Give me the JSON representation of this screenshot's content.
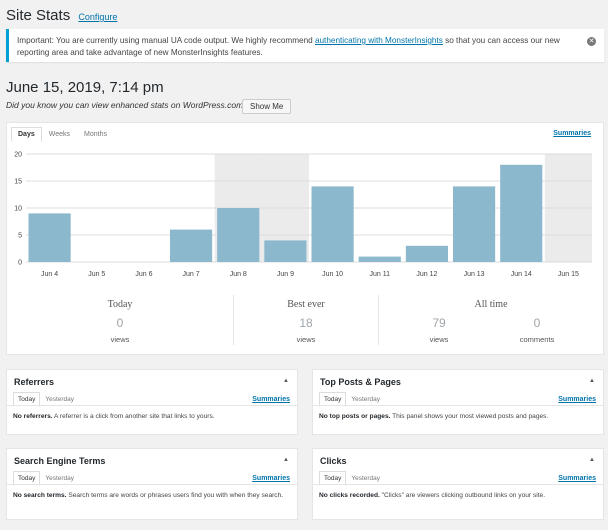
{
  "header": {
    "title": "Site Stats",
    "configure_label": "Configure"
  },
  "notice": {
    "text_before": "Important: You are currently using manual UA code output. We highly recommend ",
    "link_text": "authenticating with MonsterInsights",
    "text_after": " so that you can access our new reporting area and take advantage of new MonsterInsights features.",
    "dismiss_icon": "close-icon"
  },
  "date_heading": "June 15, 2019, 7:14 pm",
  "promo": {
    "text": "Did you know you can view enhanced stats on WordPress.com?",
    "button": "Show Me"
  },
  "stats": {
    "tabs": [
      "Days",
      "Weeks",
      "Months"
    ],
    "active_tab": "Days",
    "summaries_label": "Summaries",
    "totals": {
      "today": {
        "label": "Today",
        "value": "0",
        "unit": "views"
      },
      "best": {
        "label": "Best ever",
        "value": "18",
        "unit": "views"
      },
      "all_time": {
        "label": "All time",
        "views_value": "79",
        "views_unit": "views",
        "comments_value": "0",
        "comments_unit": "comments"
      }
    }
  },
  "chart_data": {
    "type": "bar",
    "categories": [
      "Jun 4",
      "Jun 5",
      "Jun 6",
      "Jun 7",
      "Jun 8",
      "Jun 9",
      "Jun 10",
      "Jun 11",
      "Jun 12",
      "Jun 13",
      "Jun 14",
      "Jun 15"
    ],
    "values": [
      9,
      0,
      0,
      6,
      10,
      4,
      14,
      1,
      3,
      14,
      18,
      0
    ],
    "weekend_highlight": [
      "Jun 8",
      "Jun 9",
      "Jun 15"
    ],
    "ylim": [
      0,
      20
    ],
    "yticks": [
      0,
      5,
      10,
      15,
      20
    ],
    "bar_color": "#8bb8cd",
    "weekend_color": "#ebebeb",
    "grid": true
  },
  "panels": [
    {
      "title": "Referrers",
      "tabs": [
        "Today",
        "Yesterday"
      ],
      "summaries": "Summaries",
      "empty_bold": "No referrers.",
      "empty_text": " A referrer is a click from another site that links to yours."
    },
    {
      "title": "Top Posts & Pages",
      "tabs": [
        "Today",
        "Yesterday"
      ],
      "summaries": "Summaries",
      "empty_bold": "No top posts or pages.",
      "empty_text": " This panel shows your most viewed posts and pages."
    },
    {
      "title": "Search Engine Terms",
      "tabs": [
        "Today",
        "Yesterday"
      ],
      "summaries": "Summaries",
      "empty_bold": "No search terms.",
      "empty_text": " Search terms are words or phrases users find you with when they search."
    },
    {
      "title": "Clicks",
      "tabs": [
        "Today",
        "Yesterday"
      ],
      "summaries": "Summaries",
      "empty_bold": "No clicks recorded.",
      "empty_text": " \"Clicks\" are viewers clicking outbound links on your site."
    }
  ],
  "colors": {
    "link": "#0073aa",
    "notice_border": "#00a0d2"
  }
}
